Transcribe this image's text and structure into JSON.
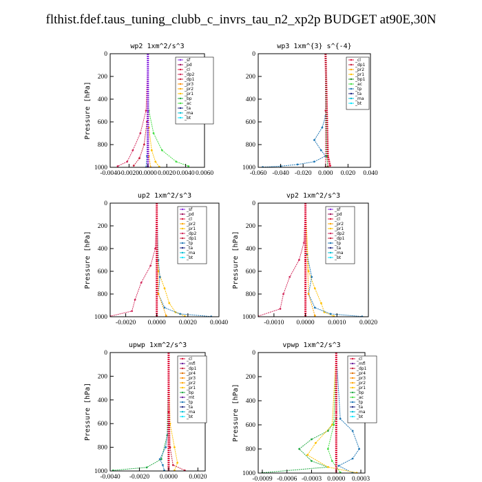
{
  "title": "flthist.fdef.taus_tuning_clubb_c_invrs_tau_n2_xp2p  BUDGET at90E,30N",
  "colors": {
    "sf": "#8a2be2",
    "pd": "#a0105a",
    "cl": "#e0143c",
    "dp1": "#c81e3c",
    "dp2": "#d2285a",
    "pr1": "#ffc000",
    "pr2": "#ffa500",
    "pr3": "#ff8c00",
    "pr4": "#e07000",
    "bp": "#22aa44",
    "bp1": "#228b22",
    "ac": "#44dd44",
    "tp": "#1f77b4",
    "ta": "#1a237e",
    "ma": "#00bcd4",
    "bt": "#00e5ff",
    "mfl": "#6a1b9a",
    "mt": "#6a1b9a"
  },
  "chart_data": [
    {
      "type": "line",
      "title": "wp2  1xm^2/s^3",
      "ylabel": "Pressure [hPa]",
      "xlim": [
        -0.004,
        0.006
      ],
      "ylim": [
        1000,
        0
      ],
      "xticks": [
        "-0.0040",
        "-0.0020",
        "0.0000",
        "0.0020",
        "0.0040",
        "0.0060"
      ],
      "yticks": [
        "0",
        "200",
        "400",
        "600",
        "800",
        "1000"
      ],
      "legend": [
        "sf",
        "pd",
        "cl",
        "dp2",
        "dp1",
        "pr3",
        "pr2",
        "pr1",
        "bp",
        "ac",
        "ta",
        "ma",
        "bt"
      ],
      "series": [
        {
          "name": "dp2",
          "x": [
            0,
            -0.0002,
            -0.0008,
            -0.0016,
            -0.0022,
            -0.0032
          ],
          "y": [
            0,
            500,
            700,
            850,
            950,
            990
          ]
        },
        {
          "name": "dp1",
          "x": [
            0,
            -0.0001,
            -0.0004,
            -0.0009,
            -0.0015
          ],
          "y": [
            0,
            600,
            800,
            920,
            985
          ]
        },
        {
          "name": "pr1",
          "x": [
            0,
            0.0001,
            0.0004,
            0.0008,
            0.0012
          ],
          "y": [
            0,
            650,
            850,
            950,
            995
          ]
        },
        {
          "name": "ac",
          "x": [
            0,
            0.0001,
            0.0006,
            0.0015,
            0.003,
            0.0043
          ],
          "y": [
            0,
            500,
            700,
            850,
            950,
            990
          ]
        },
        {
          "name": "pr2",
          "x": [
            0,
            0.0001,
            0.0003
          ],
          "y": [
            0,
            900,
            1000
          ]
        },
        {
          "name": "tp",
          "x": [
            0,
            -0.0001,
            -0.0002
          ],
          "y": [
            0,
            900,
            1000
          ]
        },
        {
          "name": "sf",
          "x": [
            0,
            0,
            0
          ],
          "y": [
            0,
            500,
            1000
          ]
        }
      ]
    },
    {
      "type": "line",
      "title": "wp3  1xm^{3} s^{-4}",
      "ylabel": "",
      "xlim": [
        -0.06,
        0.04
      ],
      "ylim": [
        1000,
        0
      ],
      "xticks": [
        "-0.060",
        "-0.040",
        "-0.020",
        "0.000",
        "0.020",
        "0.040"
      ],
      "yticks": [
        "0",
        "200",
        "400",
        "600",
        "800",
        "1000"
      ],
      "legend": [
        "cl",
        "dp1",
        "pr2",
        "pr1",
        "bp1",
        "ac",
        "tp",
        "ta",
        "ma",
        "bt"
      ],
      "series": [
        {
          "name": "tp",
          "x": [
            0,
            0,
            -0.003,
            -0.01,
            -0.004,
            0,
            -0.01,
            -0.025,
            -0.04,
            -0.056
          ],
          "y": [
            0,
            550,
            650,
            760,
            850,
            900,
            950,
            975,
            990,
            998
          ]
        },
        {
          "name": "cl",
          "x": [
            0,
            0.002,
            0.004,
            0.001
          ],
          "y": [
            0,
            900,
            985,
            1000
          ]
        },
        {
          "name": "bp1",
          "x": [
            0,
            0.001,
            0.002
          ],
          "y": [
            0,
            900,
            1000
          ]
        },
        {
          "name": "dp1",
          "x": [
            0,
            0,
            0
          ],
          "y": [
            0,
            500,
            1000
          ]
        }
      ]
    },
    {
      "type": "line",
      "title": "up2  1xm^2/s^3",
      "ylabel": "Pressure [hPa]",
      "xlim": [
        -0.003,
        0.004
      ],
      "ylim": [
        1000,
        0
      ],
      "xticks": [
        "-0.0020",
        "0.0000",
        "0.0020",
        "0.0040"
      ],
      "yticks": [
        "0",
        "200",
        "400",
        "600",
        "800",
        "1000"
      ],
      "legend": [
        "sf",
        "pd",
        "cl",
        "pr2",
        "pr1",
        "dp2",
        "dp1",
        "tp",
        "ta",
        "ma",
        "bt"
      ],
      "series": [
        {
          "name": "dp2",
          "x": [
            0,
            -0.0001,
            -0.0004,
            -0.001,
            -0.0014,
            -0.0016,
            -0.003
          ],
          "y": [
            0,
            400,
            550,
            700,
            850,
            950,
            995
          ]
        },
        {
          "name": "pr1",
          "x": [
            0,
            0.0001,
            0.0005,
            0.0008,
            0.0012,
            0.0018
          ],
          "y": [
            0,
            600,
            750,
            880,
            960,
            995
          ]
        },
        {
          "name": "tp",
          "x": [
            0,
            0.0001,
            0.0002,
            0.0001,
            0.0005,
            0.0015,
            0.0035
          ],
          "y": [
            0,
            500,
            650,
            800,
            920,
            975,
            998
          ]
        },
        {
          "name": "pr2",
          "x": [
            0,
            0.0001,
            0.0006
          ],
          "y": [
            0,
            800,
            990
          ]
        },
        {
          "name": "cl",
          "x": [
            0,
            0,
            0
          ],
          "y": [
            0,
            500,
            1000
          ]
        }
      ]
    },
    {
      "type": "line",
      "title": "vp2  1xm^2/s^3",
      "ylabel": "Pressure [hPa]",
      "xlim": [
        -0.0015,
        0.002
      ],
      "ylim": [
        1000,
        0
      ],
      "xticks": [
        "-0.0010",
        "0.0000",
        "0.0010",
        "0.0020"
      ],
      "yticks": [
        "0",
        "200",
        "400",
        "600",
        "800",
        "1000"
      ],
      "legend": [
        "sf",
        "pd",
        "cl",
        "pr2",
        "pr1",
        "dp2",
        "dp1",
        "tp",
        "ta",
        "ma",
        "bt"
      ],
      "series": [
        {
          "name": "dp2",
          "x": [
            0,
            -5e-05,
            -0.0002,
            -0.0005,
            -0.0007,
            -0.0008,
            -0.0015
          ],
          "y": [
            0,
            350,
            500,
            650,
            800,
            930,
            995
          ]
        },
        {
          "name": "pr1",
          "x": [
            0,
            0.0001,
            0.0003,
            0.0005,
            0.0006,
            0.0009
          ],
          "y": [
            0,
            600,
            750,
            880,
            960,
            995
          ]
        },
        {
          "name": "tp",
          "x": [
            0,
            5e-05,
            0.0002,
            0.0001,
            0.0003,
            0.0008,
            0.0018
          ],
          "y": [
            0,
            450,
            650,
            800,
            920,
            975,
            998
          ]
        },
        {
          "name": "pr2",
          "x": [
            0,
            0.0001,
            0.0003
          ],
          "y": [
            0,
            800,
            990
          ]
        },
        {
          "name": "cl",
          "x": [
            0,
            0,
            0
          ],
          "y": [
            0,
            500,
            1000
          ]
        }
      ]
    },
    {
      "type": "line",
      "title": "upwp  1xm^2/s^3",
      "ylabel": "Pressure [hPa]",
      "xlim": [
        -0.004,
        0.0025
      ],
      "ylim": [
        1000,
        0
      ],
      "xticks": [
        "-0.0040",
        "-0.0020",
        "0.0000",
        "0.0020"
      ],
      "yticks": [
        "0",
        "200",
        "400",
        "600",
        "800",
        "1000"
      ],
      "legend": [
        "cl",
        "mfl",
        "dp1",
        "pr4",
        "pr3",
        "pr2",
        "pr1",
        "bp",
        "mt",
        "tp",
        "ta",
        "ma",
        "bt"
      ],
      "series": [
        {
          "name": "bp",
          "x": [
            0,
            -0.0001,
            -0.0005,
            -0.0015,
            -0.0038
          ],
          "y": [
            0,
            700,
            900,
            970,
            995
          ]
        },
        {
          "name": "tp",
          "x": [
            0,
            0,
            -0.0002,
            -0.0006,
            -0.0004,
            -0.0003
          ],
          "y": [
            0,
            600,
            800,
            900,
            950,
            995
          ]
        },
        {
          "name": "pr1",
          "x": [
            0,
            0.0001,
            0.0004,
            0.0006,
            0.0004
          ],
          "y": [
            0,
            600,
            800,
            930,
            995
          ]
        },
        {
          "name": "dp1",
          "x": [
            0,
            0.0001,
            0.0003,
            0.0011
          ],
          "y": [
            0,
            800,
            950,
            995
          ]
        },
        {
          "name": "cl",
          "x": [
            0,
            0,
            0
          ],
          "y": [
            0,
            500,
            1000
          ]
        }
      ]
    },
    {
      "type": "line",
      "title": "vpwp  1xm^2/s^3",
      "ylabel": "Pressure [hPa]",
      "xlim": [
        -0.00095,
        0.00035
      ],
      "ylim": [
        1000,
        0
      ],
      "xticks": [
        "-0.0009",
        "-0.0006",
        "-0.0003",
        "0.0000",
        "0.0003"
      ],
      "yticks": [
        "0",
        "200",
        "400",
        "600",
        "800",
        "1000"
      ],
      "legend": [
        "cl",
        "mfl",
        "dp1",
        "pr4",
        "pr3",
        "pr2",
        "pr1",
        "bp",
        "ac",
        "tp",
        "ta",
        "ma",
        "bt"
      ],
      "series": [
        {
          "name": "bp",
          "x": [
            0,
            0,
            -0.0001,
            -0.0003,
            -0.00045,
            -0.0003,
            -0.0001,
            -0.0009
          ],
          "y": [
            0,
            550,
            650,
            720,
            800,
            900,
            950,
            998
          ]
        },
        {
          "name": "tp",
          "x": [
            0,
            5e-05,
            0.0002,
            0.00028,
            0.0002,
            3e-05,
            0.0002
          ],
          "y": [
            0,
            550,
            650,
            800,
            880,
            940,
            998
          ]
        },
        {
          "name": "pr1",
          "x": [
            0,
            -5e-05,
            -0.00025,
            -0.00035,
            -0.0001,
            0.00025
          ],
          "y": [
            0,
            600,
            750,
            850,
            950,
            998
          ]
        },
        {
          "name": "ac",
          "x": [
            0,
            -3e-05,
            -0.0001,
            -5e-05,
            5e-05
          ],
          "y": [
            0,
            600,
            800,
            900,
            995
          ]
        },
        {
          "name": "cl",
          "x": [
            0,
            0,
            0
          ],
          "y": [
            0,
            500,
            1000
          ]
        }
      ]
    }
  ]
}
